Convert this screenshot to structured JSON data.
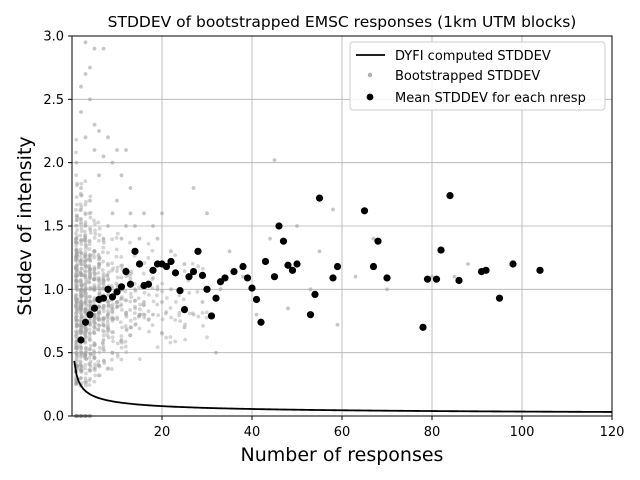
{
  "chart_data": {
    "type": "scatter",
    "title": "STDDEV of bootstrapped EMSC responses (1km UTM blocks)",
    "xlabel": "Number of responses",
    "ylabel": "Stddev of intensity",
    "xlim": [
      0,
      120
    ],
    "ylim": [
      0.0,
      3.0
    ],
    "x_ticks": [
      20,
      40,
      60,
      80,
      100,
      120
    ],
    "y_ticks": [
      0.0,
      0.5,
      1.0,
      1.5,
      2.0,
      2.5,
      3.0
    ],
    "x_tick_labels": [
      "20",
      "40",
      "60",
      "80",
      "100",
      "120"
    ],
    "y_tick_labels": [
      "0.0",
      "0.5",
      "1.0",
      "1.5",
      "2.0",
      "2.5",
      "3.0"
    ],
    "grid": true,
    "legend_position": "upper-right",
    "series": [
      {
        "name": "DYFI computed STDDEV",
        "kind": "line",
        "color": "#000000",
        "formula": "0.35 / sqrt(x + 0.15)"
      },
      {
        "name": "Bootstrapped STDDEV",
        "kind": "scatter",
        "color": "#a0a0a0",
        "note": "dense cloud of individual bootstrap samples concentrated at small x",
        "points": [
          [
            1,
            0.4
          ],
          [
            1,
            0.9
          ],
          [
            1,
            1.4
          ],
          [
            1,
            2.0
          ],
          [
            1,
            0.0
          ],
          [
            2,
            0.3
          ],
          [
            2,
            0.7
          ],
          [
            2,
            1.2
          ],
          [
            2,
            1.8
          ],
          [
            2,
            2.4
          ],
          [
            2,
            2.6
          ],
          [
            3,
            0.5
          ],
          [
            3,
            1.0
          ],
          [
            3,
            1.5
          ],
          [
            3,
            2.2
          ],
          [
            3,
            2.7
          ],
          [
            3,
            2.95
          ],
          [
            4,
            0.6
          ],
          [
            4,
            1.1
          ],
          [
            4,
            1.7
          ],
          [
            4,
            2.5
          ],
          [
            4,
            2.75
          ],
          [
            5,
            0.5
          ],
          [
            5,
            1.3
          ],
          [
            5,
            2.1
          ],
          [
            5,
            2.3
          ],
          [
            5,
            2.9
          ],
          [
            6,
            0.4
          ],
          [
            6,
            1.2
          ],
          [
            6,
            1.9
          ],
          [
            6,
            2.25
          ],
          [
            7,
            0.6
          ],
          [
            7,
            1.4
          ],
          [
            7,
            2.05
          ],
          [
            7,
            2.9
          ],
          [
            8,
            0.7
          ],
          [
            8,
            1.5
          ],
          [
            8,
            2.2
          ],
          [
            9,
            0.5
          ],
          [
            9,
            1.6
          ],
          [
            9,
            2.0
          ],
          [
            10,
            0.9
          ],
          [
            10,
            1.7
          ],
          [
            10,
            2.1
          ],
          [
            11,
            0.6
          ],
          [
            11,
            1.4
          ],
          [
            11,
            1.9
          ],
          [
            12,
            0.8
          ],
          [
            12,
            1.5
          ],
          [
            12,
            2.1
          ],
          [
            13,
            0.7
          ],
          [
            13,
            1.6
          ],
          [
            13,
            1.8
          ],
          [
            14,
            1.0
          ],
          [
            14,
            1.5
          ],
          [
            15,
            0.8
          ],
          [
            15,
            1.4
          ],
          [
            16,
            0.9
          ],
          [
            16,
            1.6
          ],
          [
            18,
            0.8
          ],
          [
            18,
            1.5
          ],
          [
            19,
            1.0
          ],
          [
            19,
            1.4
          ],
          [
            20,
            0.9
          ],
          [
            20,
            1.6
          ],
          [
            22,
            1.0
          ],
          [
            22,
            1.3
          ],
          [
            25,
            0.7
          ],
          [
            25,
            1.2
          ],
          [
            27,
            1.8
          ],
          [
            29,
            0.9
          ],
          [
            30,
            1.6
          ],
          [
            32,
            0.5
          ],
          [
            33,
            1.0
          ],
          [
            35,
            1.3
          ],
          [
            38,
            1.1
          ],
          [
            41,
            0.8
          ],
          [
            44,
            1.4
          ],
          [
            45,
            2.02
          ],
          [
            48,
            0.85
          ],
          [
            50,
            1.5
          ],
          [
            53,
            1.0
          ],
          [
            55,
            1.3
          ],
          [
            58,
            1.63
          ],
          [
            59,
            0.72
          ],
          [
            63,
            1.1
          ],
          [
            67,
            1.4
          ],
          [
            70,
            1.0
          ],
          [
            80,
            1.1
          ],
          [
            85,
            1.1
          ],
          [
            88,
            1.2
          ]
        ]
      },
      {
        "name": "Mean STDDEV for each nresp",
        "kind": "scatter",
        "color": "#000000",
        "points": [
          [
            2,
            0.6
          ],
          [
            3,
            0.74
          ],
          [
            4,
            0.8
          ],
          [
            5,
            0.85
          ],
          [
            6,
            0.92
          ],
          [
            7,
            0.93
          ],
          [
            8,
            1.0
          ],
          [
            9,
            0.94
          ],
          [
            10,
            0.98
          ],
          [
            11,
            1.02
          ],
          [
            12,
            1.14
          ],
          [
            13,
            1.04
          ],
          [
            14,
            1.3
          ],
          [
            15,
            1.2
          ],
          [
            16,
            1.03
          ],
          [
            17,
            1.04
          ],
          [
            18,
            1.15
          ],
          [
            19,
            1.2
          ],
          [
            20,
            1.2
          ],
          [
            21,
            1.18
          ],
          [
            22,
            1.22
          ],
          [
            23,
            1.13
          ],
          [
            24,
            0.99
          ],
          [
            25,
            0.84
          ],
          [
            26,
            1.1
          ],
          [
            27,
            1.14
          ],
          [
            28,
            1.3
          ],
          [
            29,
            1.11
          ],
          [
            30,
            1.0
          ],
          [
            31,
            0.79
          ],
          [
            32,
            0.93
          ],
          [
            33,
            1.06
          ],
          [
            34,
            1.09
          ],
          [
            36,
            1.14
          ],
          [
            38,
            1.18
          ],
          [
            39,
            1.09
          ],
          [
            40,
            1.01
          ],
          [
            41,
            0.92
          ],
          [
            42,
            0.74
          ],
          [
            43,
            1.22
          ],
          [
            45,
            1.1
          ],
          [
            46,
            1.5
          ],
          [
            47,
            1.38
          ],
          [
            48,
            1.19
          ],
          [
            49,
            1.15
          ],
          [
            50,
            1.2
          ],
          [
            53,
            0.8
          ],
          [
            54,
            0.96
          ],
          [
            55,
            1.72
          ],
          [
            58,
            1.09
          ],
          [
            59,
            1.18
          ],
          [
            65,
            1.62
          ],
          [
            67,
            1.18
          ],
          [
            68,
            1.38
          ],
          [
            70,
            1.09
          ],
          [
            78,
            0.7
          ],
          [
            79,
            1.08
          ],
          [
            81,
            1.08
          ],
          [
            82,
            1.31
          ],
          [
            84,
            1.74
          ],
          [
            86,
            1.07
          ],
          [
            91,
            1.14
          ],
          [
            92,
            1.15
          ],
          [
            95,
            0.93
          ],
          [
            98,
            1.2
          ],
          [
            104,
            1.15
          ]
        ]
      }
    ]
  }
}
